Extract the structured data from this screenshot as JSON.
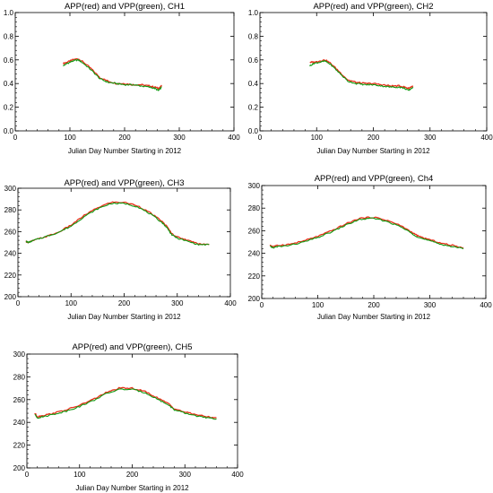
{
  "chart_data": [
    {
      "type": "line",
      "title": "APP(red) and VPP(green), CH1",
      "xlabel": "Julian Day Number Starting in 2012",
      "ylabel": "",
      "xlim": [
        0,
        400
      ],
      "ylim": [
        0.0,
        1.0
      ],
      "xticks": [
        "0",
        "100",
        "200",
        "300",
        "400"
      ],
      "yticks": [
        "0.0",
        "0.2",
        "0.4",
        "0.6",
        "0.8",
        "1.0"
      ],
      "grid": false,
      "series": [
        {
          "color": "#e8301a",
          "x": [
            88,
            95,
            105,
            115,
            125,
            140,
            155,
            170,
            185,
            200,
            215,
            230,
            245,
            255,
            262,
            268
          ],
          "y": [
            0.57,
            0.58,
            0.6,
            0.61,
            0.58,
            0.52,
            0.45,
            0.42,
            0.4,
            0.4,
            0.39,
            0.39,
            0.38,
            0.37,
            0.36,
            0.38
          ]
        },
        {
          "color": "#119911",
          "x": [
            88,
            95,
            105,
            115,
            125,
            140,
            155,
            170,
            185,
            200,
            215,
            230,
            245,
            255,
            262,
            268
          ],
          "y": [
            0.55,
            0.57,
            0.59,
            0.6,
            0.57,
            0.51,
            0.44,
            0.41,
            0.4,
            0.39,
            0.39,
            0.38,
            0.37,
            0.36,
            0.34,
            0.37
          ]
        }
      ]
    },
    {
      "type": "line",
      "title": "APP(red) and VPP(green), CH2",
      "xlabel": "Julian Day Number Starting in 2012",
      "ylabel": "",
      "xlim": [
        0,
        400
      ],
      "ylim": [
        0.0,
        1.0
      ],
      "xticks": [
        "0",
        "100",
        "200",
        "300",
        "400"
      ],
      "yticks": [
        "0.0",
        "0.2",
        "0.4",
        "0.6",
        "0.8",
        "1.0"
      ],
      "grid": false,
      "series": [
        {
          "color": "#e8301a",
          "x": [
            88,
            95,
            105,
            115,
            125,
            140,
            155,
            170,
            185,
            200,
            215,
            230,
            245,
            255,
            262,
            270
          ],
          "y": [
            0.58,
            0.58,
            0.59,
            0.6,
            0.57,
            0.5,
            0.43,
            0.41,
            0.4,
            0.4,
            0.39,
            0.38,
            0.38,
            0.37,
            0.36,
            0.38
          ]
        },
        {
          "color": "#119911",
          "x": [
            88,
            95,
            105,
            115,
            125,
            140,
            155,
            170,
            185,
            200,
            215,
            230,
            245,
            255,
            262,
            270
          ],
          "y": [
            0.55,
            0.57,
            0.58,
            0.59,
            0.56,
            0.49,
            0.42,
            0.4,
            0.39,
            0.39,
            0.38,
            0.37,
            0.37,
            0.36,
            0.34,
            0.37
          ]
        }
      ]
    },
    {
      "type": "line",
      "title": "APP(red) and VPP(green), CH3",
      "xlabel": "Julian Day Number Starting in 2012",
      "ylabel": "",
      "xlim": [
        0,
        400
      ],
      "ylim": [
        200,
        300
      ],
      "xticks": [
        "0",
        "100",
        "200",
        "300",
        "400"
      ],
      "yticks": [
        "200",
        "220",
        "240",
        "260",
        "280",
        "300"
      ],
      "grid": false,
      "series": [
        {
          "color": "#e8301a",
          "x": [
            15,
            20,
            30,
            50,
            75,
            100,
            125,
            150,
            175,
            200,
            225,
            250,
            270,
            280,
            290,
            300,
            320,
            340,
            360
          ],
          "y": [
            251,
            250,
            252,
            255,
            259,
            266,
            275,
            282,
            287,
            287,
            284,
            277,
            270,
            265,
            258,
            255,
            252,
            249,
            248
          ]
        },
        {
          "color": "#119911",
          "x": [
            15,
            20,
            30,
            50,
            75,
            100,
            125,
            150,
            175,
            200,
            225,
            250,
            270,
            280,
            290,
            300,
            320,
            340,
            360
          ],
          "y": [
            251,
            250,
            252,
            255,
            259,
            265,
            274,
            281,
            286,
            286,
            283,
            276,
            269,
            264,
            257,
            254,
            251,
            248,
            248
          ]
        }
      ]
    },
    {
      "type": "line",
      "title": "APP(red) and VPP(green), Ch4",
      "xlabel": "Julian Day Number Starting in 2012",
      "ylabel": "",
      "xlim": [
        0,
        400
      ],
      "ylim": [
        200,
        300
      ],
      "xticks": [
        "0",
        "100",
        "200",
        "300",
        "400"
      ],
      "yticks": [
        "200",
        "220",
        "240",
        "260",
        "280",
        "300"
      ],
      "grid": false,
      "series": [
        {
          "color": "#e8301a",
          "x": [
            15,
            20,
            30,
            50,
            75,
            100,
            125,
            150,
            175,
            200,
            225,
            250,
            270,
            280,
            300,
            320,
            340,
            360
          ],
          "y": [
            247,
            246,
            247,
            248,
            251,
            255,
            260,
            266,
            271,
            272,
            269,
            264,
            258,
            255,
            252,
            249,
            247,
            245
          ]
        },
        {
          "color": "#119911",
          "x": [
            15,
            20,
            30,
            50,
            75,
            100,
            125,
            150,
            175,
            200,
            225,
            250,
            270,
            280,
            300,
            320,
            340,
            360
          ],
          "y": [
            246,
            245,
            246,
            247,
            250,
            254,
            259,
            265,
            270,
            271,
            268,
            263,
            257,
            254,
            251,
            248,
            246,
            244
          ]
        }
      ]
    },
    {
      "type": "line",
      "title": "APP(red) and VPP(green), CH5",
      "xlabel": "Julian Day Number Starting in 2012",
      "ylabel": "",
      "xlim": [
        0,
        400
      ],
      "ylim": [
        200,
        300
      ],
      "xticks": [
        "0",
        "100",
        "200",
        "300",
        "400"
      ],
      "yticks": [
        "200",
        "220",
        "240",
        "260",
        "280",
        "300"
      ],
      "grid": false,
      "series": [
        {
          "color": "#e8301a",
          "x": [
            15,
            20,
            30,
            50,
            75,
            100,
            125,
            150,
            175,
            200,
            225,
            250,
            270,
            280,
            300,
            320,
            340,
            360
          ],
          "y": [
            248,
            245,
            246,
            248,
            251,
            255,
            260,
            266,
            270,
            270,
            267,
            261,
            256,
            252,
            249,
            247,
            245,
            244
          ]
        },
        {
          "color": "#119911",
          "x": [
            15,
            20,
            30,
            50,
            75,
            100,
            125,
            150,
            175,
            200,
            225,
            250,
            270,
            280,
            300,
            320,
            340,
            360
          ],
          "y": [
            247,
            244,
            245,
            247,
            250,
            254,
            259,
            265,
            269,
            269,
            266,
            260,
            255,
            251,
            248,
            246,
            244,
            243
          ]
        }
      ]
    }
  ]
}
